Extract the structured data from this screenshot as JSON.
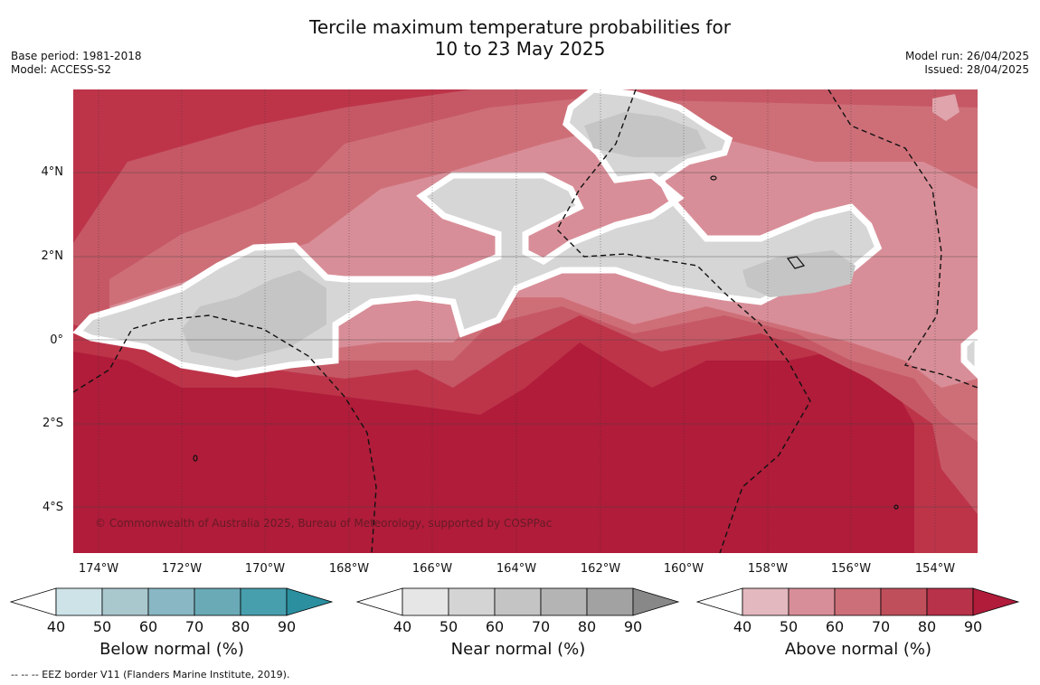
{
  "title_line1": "Tercile maximum temperature probabilities for",
  "title_line2": "10 to 23 May 2025",
  "base_period": "Base period: 1981-2018",
  "model": "Model: ACCESS-S2",
  "model_run": "Model run: 26/04/2025",
  "issued": "Issued: 28/04/2025",
  "y_ticks": [
    "4°N",
    "2°N",
    "0°",
    "2°S",
    "4°S"
  ],
  "x_ticks": [
    "174°W",
    "172°W",
    "170°W",
    "168°W",
    "166°W",
    "164°W",
    "162°W",
    "160°W",
    "158°W",
    "156°W",
    "154°W"
  ],
  "copyright": "© Commonwealth of Australia 2025, Bureau of Meteorology, supported by COSPPac",
  "colorbars": [
    {
      "label": "Below normal (%)",
      "ticks": [
        "40",
        "50",
        "60",
        "70",
        "80",
        "90"
      ],
      "colors": [
        "#ffffff",
        "#cde3e8",
        "#a9c8ce",
        "#89b7c3",
        "#6aaab7",
        "#479fae",
        "#2b8fa0"
      ]
    },
    {
      "label": "Near normal (%)",
      "ticks": [
        "40",
        "50",
        "60",
        "70",
        "80",
        "90"
      ],
      "colors": [
        "#ffffff",
        "#e6e6e6",
        "#d4d4d4",
        "#c4c4c4",
        "#b4b4b4",
        "#a2a2a2",
        "#888888"
      ]
    },
    {
      "label": "Above normal (%)",
      "ticks": [
        "40",
        "50",
        "60",
        "70",
        "80",
        "90"
      ],
      "colors": [
        "#ffffff",
        "#e3b8be",
        "#d88e98",
        "#cd6f79",
        "#c04f5c",
        "#b8324a",
        "#b01c3a"
      ]
    }
  ],
  "footer": "-- -- -- EEZ border V11 (Flanders Marine Institute, 2019)."
}
